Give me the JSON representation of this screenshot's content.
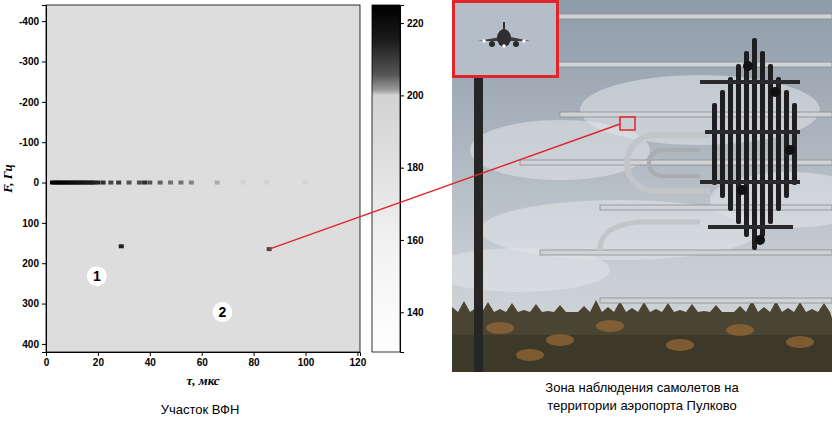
{
  "chart_data": {
    "type": "heatmap",
    "title": "Участок ВФН",
    "x_label": "τ, мкс",
    "y_label": "F, Гц",
    "xlim": [
      0,
      121
    ],
    "xticks": [
      0,
      20,
      40,
      60,
      80,
      100,
      120
    ],
    "ylim": [
      -440,
      420
    ],
    "yticks": [
      -400,
      -300,
      -200,
      -100,
      0,
      100,
      200,
      300,
      400
    ],
    "x": [
      2.5,
      3.5,
      4.5,
      5.5,
      6.5,
      7.5,
      8.5,
      9.5,
      10.5,
      11.5,
      12.5,
      13.5,
      14.5,
      15.5,
      16.5,
      17.5,
      18.5,
      20,
      22,
      25,
      28,
      32,
      36,
      38,
      40,
      44,
      48,
      52,
      56,
      66,
      76,
      85,
      100,
      29,
      86
    ],
    "y": [
      0,
      0,
      0,
      0,
      0,
      0,
      0,
      0,
      0,
      0,
      0,
      0,
      0,
      0,
      0,
      0,
      0,
      0,
      0,
      0,
      0,
      0,
      0,
      0,
      0,
      0,
      0,
      0,
      0,
      0,
      0,
      0,
      0,
      158,
      165
    ],
    "values": [
      225,
      225,
      224,
      224,
      223,
      222,
      222,
      221,
      220,
      220,
      219,
      218,
      218,
      217,
      216,
      215,
      215,
      214,
      212,
      208,
      210,
      206,
      207,
      212,
      206,
      205,
      204,
      204,
      203,
      201,
      200,
      200,
      199,
      215,
      208
    ],
    "background_value": 185,
    "colorbar": {
      "range": [
        129,
        225
      ],
      "ticks": [
        140,
        160,
        180,
        200,
        220
      ]
    },
    "annotations": [
      {
        "text": "1",
        "x": 19.6,
        "y": 232
      },
      {
        "text": "2",
        "x": 68,
        "y": 321
      }
    ]
  },
  "photo": {
    "caption": "Зона наблюдения самолетов на территории аэропорта Пулково"
  }
}
